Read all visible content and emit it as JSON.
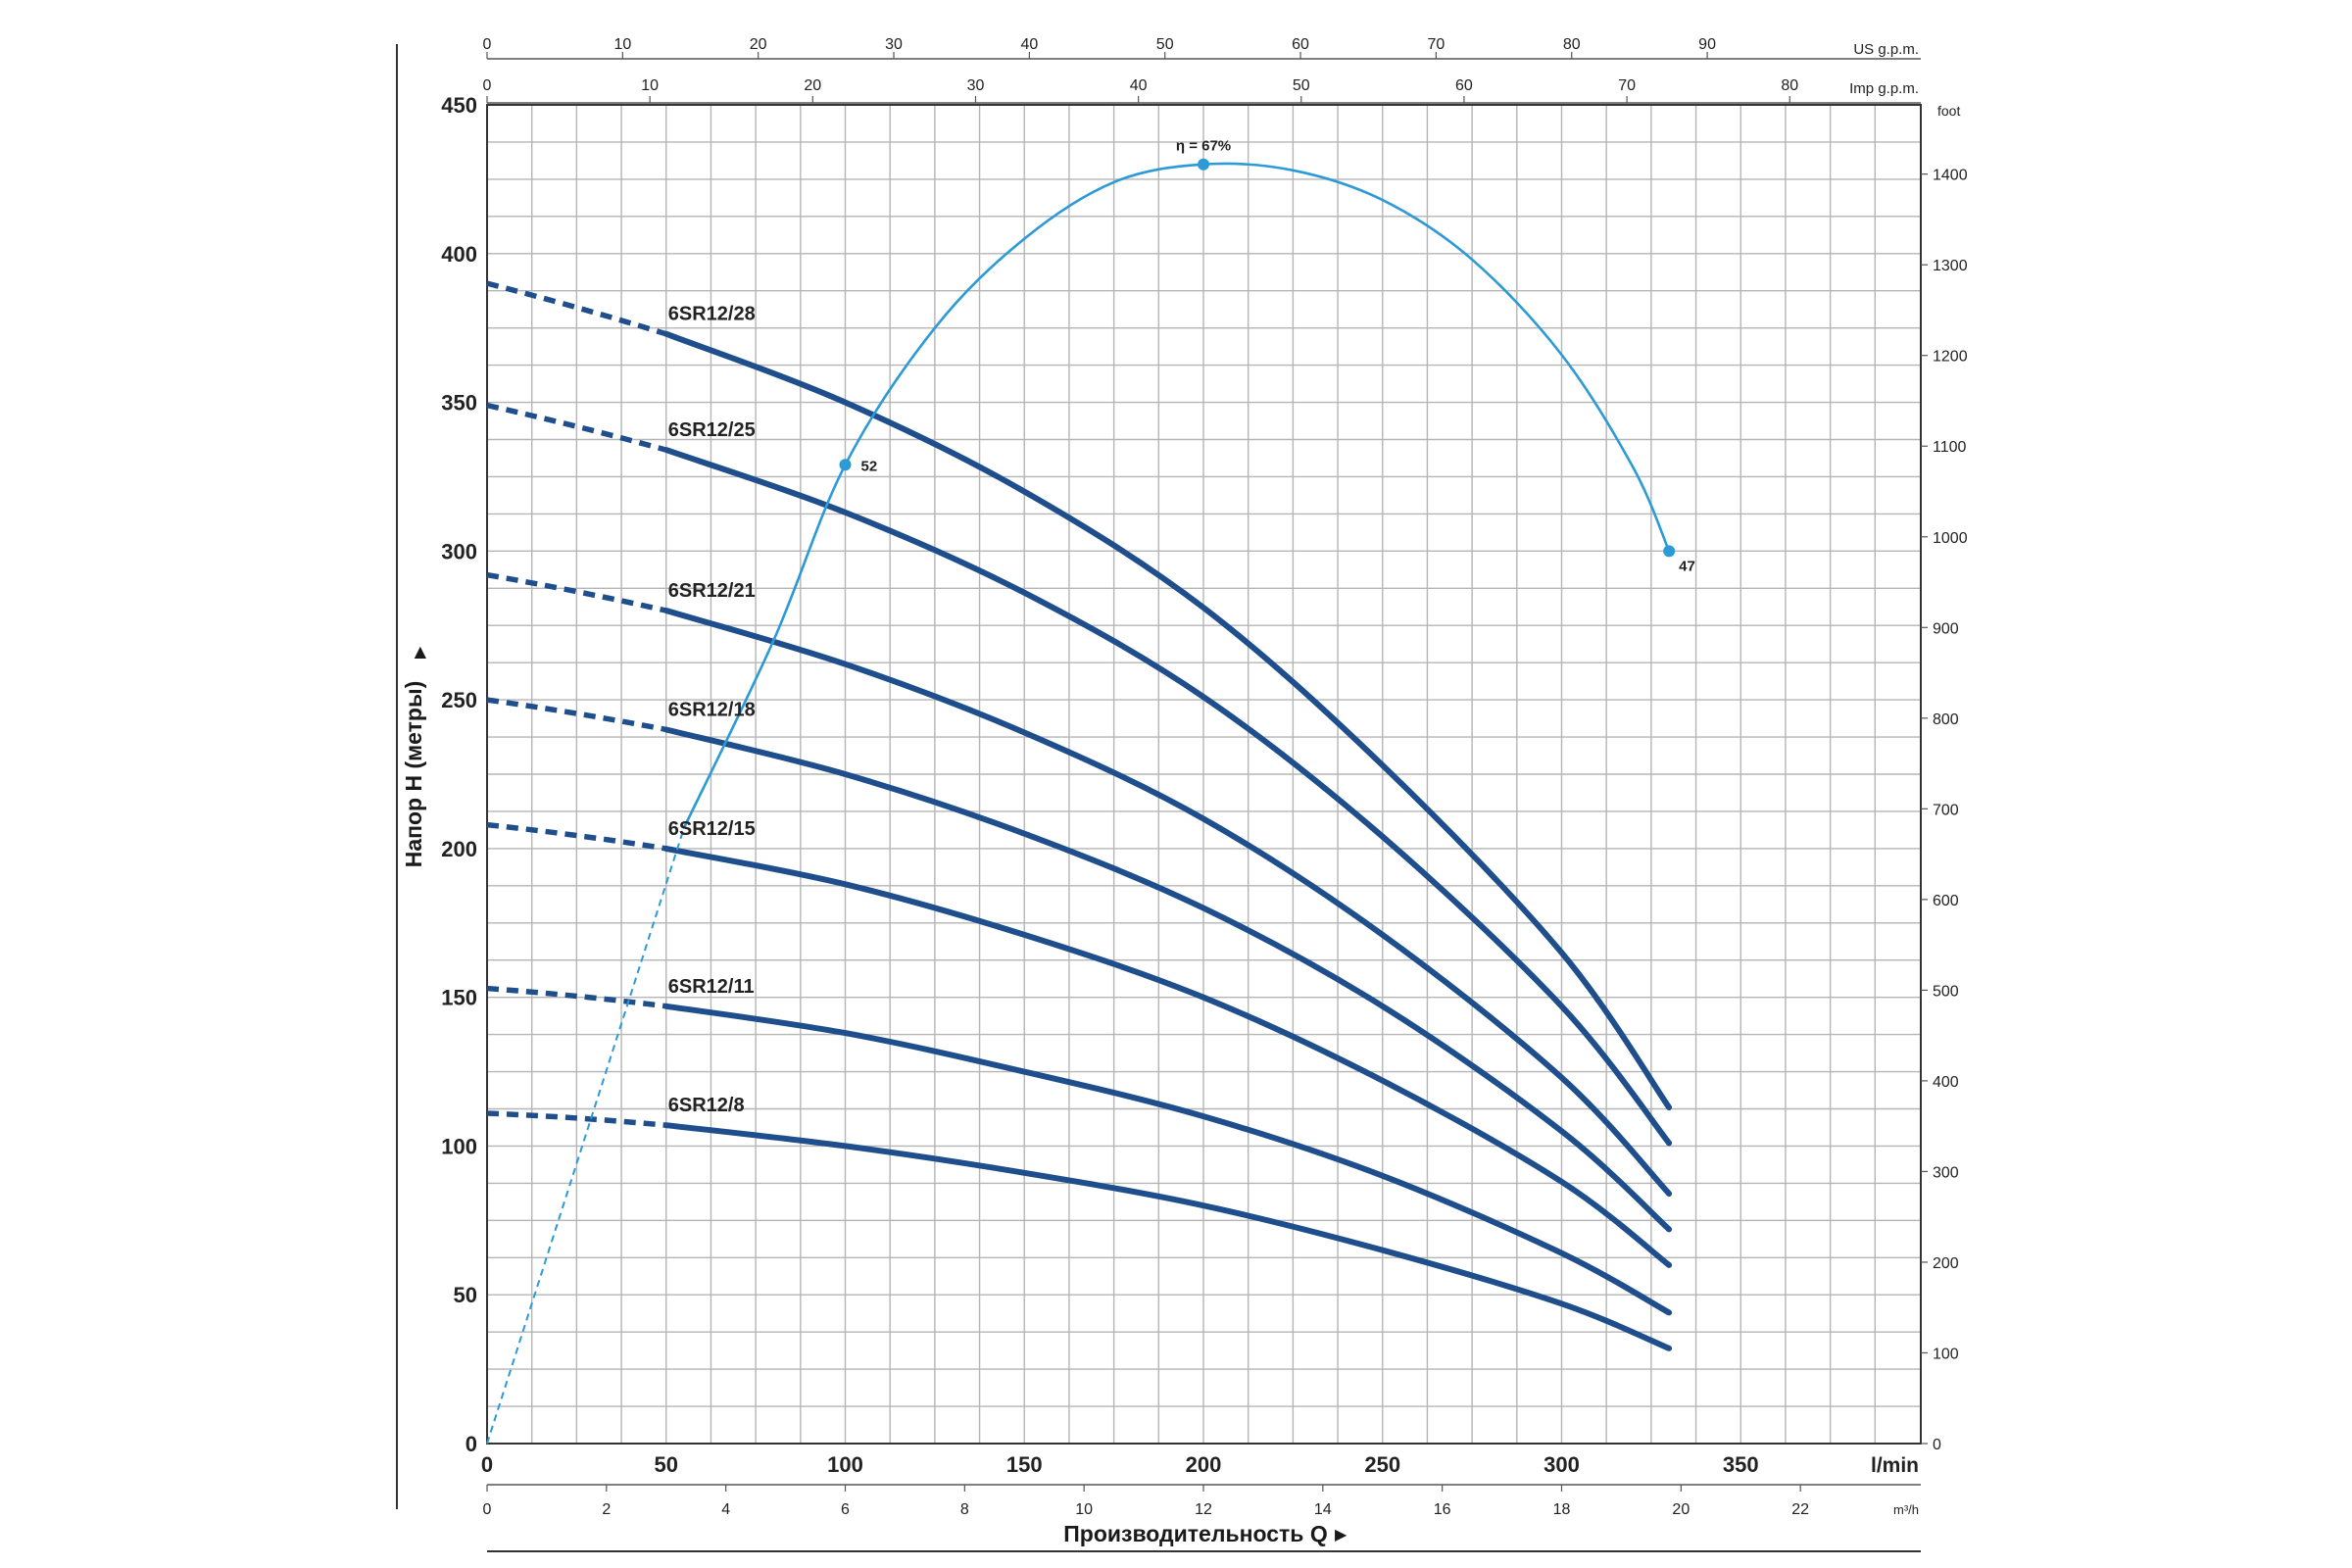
{
  "chart_data": {
    "type": "line",
    "title": "",
    "ylabel": "Напор H (метры)",
    "xlabel": "Производительность Q",
    "x_unit": "l/min",
    "x_range": [
      0,
      400
    ],
    "x_ticks": [
      0,
      50,
      100,
      150,
      200,
      250,
      300,
      350
    ],
    "ylim": [
      0,
      450
    ],
    "y_ticks": [
      0,
      50,
      100,
      150,
      200,
      250,
      300,
      350,
      400,
      450
    ],
    "grid": true,
    "secondary_axes": {
      "us_gpm": {
        "unit": "US g.p.m.",
        "ticks": [
          0,
          10,
          20,
          30,
          40,
          50,
          60,
          70,
          80,
          90
        ]
      },
      "imp_gpm": {
        "unit": "Imp g.p.m.",
        "ticks": [
          0,
          10,
          20,
          30,
          40,
          50,
          60,
          70,
          80
        ]
      },
      "m3h": {
        "unit": "m³/h",
        "ticks": [
          0,
          2,
          4,
          6,
          8,
          10,
          12,
          14,
          16,
          18,
          20,
          22
        ]
      },
      "foot": {
        "unit": "foot",
        "ticks": [
          0,
          100,
          200,
          300,
          400,
          500,
          600,
          700,
          800,
          900,
          1000,
          1100,
          1200,
          1300,
          1400
        ]
      }
    },
    "series": [
      {
        "name": "6SR12/28",
        "dashed_x": [
          0,
          50
        ],
        "x": [
          50,
          100,
          150,
          200,
          250,
          300,
          330
        ],
        "y": [
          373,
          350,
          320,
          281,
          228,
          165,
          113
        ],
        "dashed_y": [
          390,
          373
        ]
      },
      {
        "name": "6SR12/25",
        "dashed_x": [
          0,
          50
        ],
        "x": [
          50,
          100,
          150,
          200,
          250,
          300,
          330
        ],
        "y": [
          334,
          313,
          286,
          251,
          204,
          147,
          101
        ],
        "dashed_y": [
          349,
          334
        ]
      },
      {
        "name": "6SR12/21",
        "dashed_x": [
          0,
          50
        ],
        "x": [
          50,
          100,
          150,
          200,
          250,
          300,
          330
        ],
        "y": [
          280,
          262,
          239,
          210,
          171,
          123,
          84
        ],
        "dashed_y": [
          292,
          280
        ]
      },
      {
        "name": "6SR12/18",
        "dashed_x": [
          0,
          50
        ],
        "x": [
          50,
          100,
          150,
          200,
          250,
          300,
          330
        ],
        "y": [
          240,
          225,
          205,
          180,
          147,
          105,
          72
        ],
        "dashed_y": [
          250,
          240
        ]
      },
      {
        "name": "6SR12/15",
        "dashed_x": [
          0,
          50
        ],
        "x": [
          50,
          100,
          150,
          200,
          250,
          300,
          330
        ],
        "y": [
          200,
          188,
          171,
          150,
          122,
          88,
          60
        ],
        "dashed_y": [
          208,
          200
        ]
      },
      {
        "name": "6SR12/11",
        "dashed_x": [
          0,
          50
        ],
        "x": [
          50,
          100,
          150,
          200,
          250,
          300,
          330
        ],
        "y": [
          147,
          138,
          125,
          110,
          90,
          64,
          44
        ],
        "dashed_y": [
          153,
          147
        ]
      },
      {
        "name": "6SR12/8",
        "dashed_x": [
          0,
          50
        ],
        "x": [
          50,
          100,
          150,
          200,
          250,
          300,
          330
        ],
        "y": [
          107,
          100,
          91,
          80,
          65,
          47,
          32
        ],
        "dashed_y": [
          111,
          107
        ]
      }
    ],
    "efficiency_curve": {
      "x": [
        55,
        80,
        100,
        125,
        150,
        175,
        200,
        225,
        250,
        275,
        300,
        320,
        330
      ],
      "y": [
        207,
        270,
        329,
        375,
        405,
        424,
        430,
        428,
        418,
        398,
        366,
        328,
        300
      ],
      "dashed_x": [
        0,
        55
      ],
      "dashed_y": [
        0,
        207
      ],
      "points": [
        {
          "x": 100,
          "y": 329,
          "label": "52"
        },
        {
          "x": 200,
          "y": 430,
          "label": "η = 67%"
        },
        {
          "x": 330,
          "y": 300,
          "label": "47"
        }
      ]
    }
  }
}
